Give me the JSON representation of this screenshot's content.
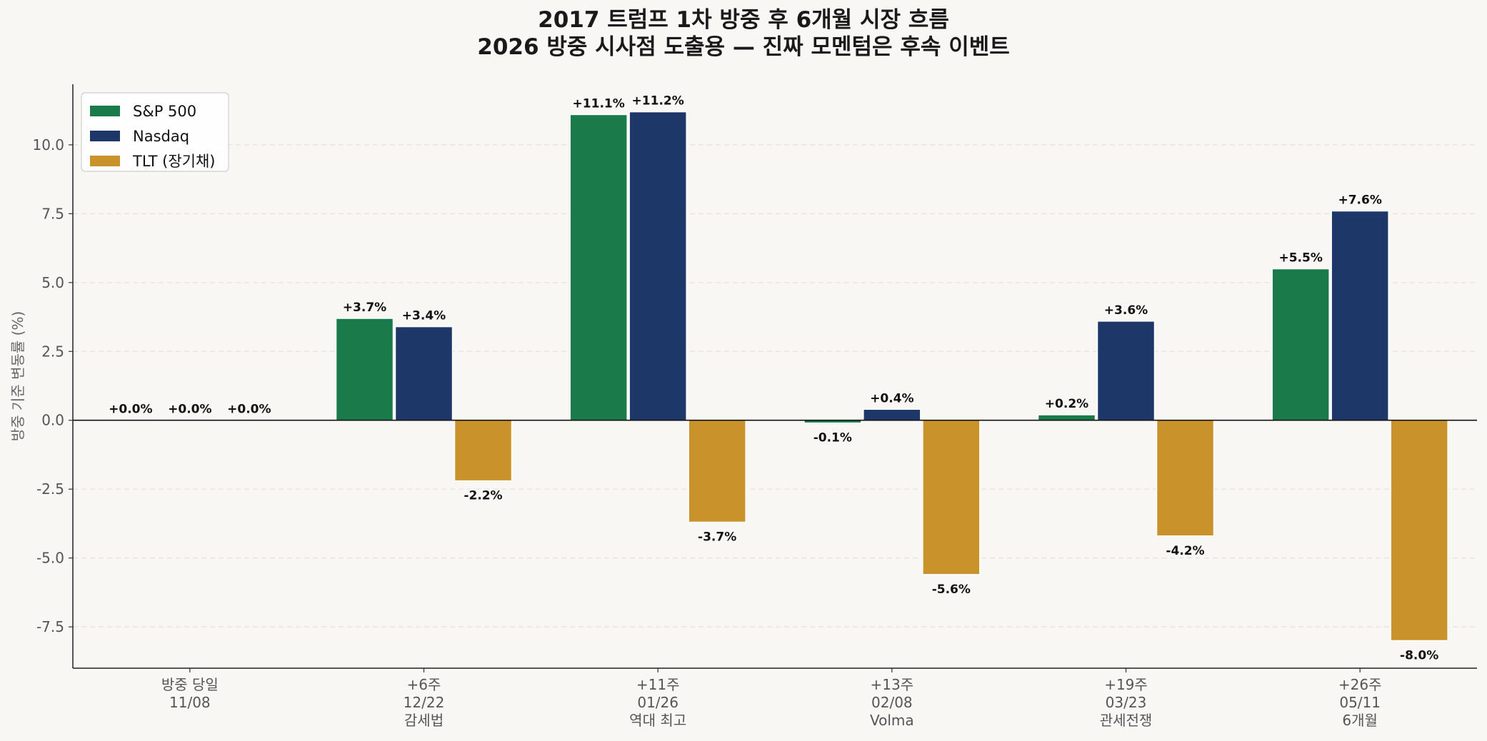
{
  "chart_data": {
    "type": "bar",
    "title_lines": [
      "2017 트럼프 1차 방중 후 6개월 시장 흐름",
      "2026 방중 시사점 도출용 — 진짜 모멘텀은 후속 이벤트"
    ],
    "ylabel": "방중 기준 변동률 (%)",
    "xlabel": "",
    "ylim": [
      -9.0,
      12.2
    ],
    "yticks": [
      -7.5,
      -5.0,
      -2.5,
      0.0,
      2.5,
      5.0,
      7.5,
      10.0
    ],
    "ytick_labels": [
      "-7.5",
      "-5.0",
      "-2.5",
      "0.0",
      "2.5",
      "5.0",
      "7.5",
      "10.0"
    ],
    "grid": true,
    "legend_placement": "top-left",
    "categories": [
      [
        "방중 당일",
        "11/08"
      ],
      [
        "+6주",
        "12/22",
        "감세법"
      ],
      [
        "+11주",
        "01/26",
        "역대 최고"
      ],
      [
        "+13주",
        "02/08",
        "Volma"
      ],
      [
        "+19주",
        "03/23",
        "관세전쟁"
      ],
      [
        "+26주",
        "05/11",
        "6개월"
      ]
    ],
    "series": [
      {
        "name": "S&P 500",
        "color": "#1b7a4a",
        "values": [
          0.0,
          3.7,
          11.1,
          -0.1,
          0.2,
          5.5
        ],
        "labels": [
          "+0.0%",
          "+3.7%",
          "+11.1%",
          "-0.1%",
          "+0.2%",
          "+5.5%"
        ]
      },
      {
        "name": "Nasdaq",
        "color": "#1c3768",
        "values": [
          0.0,
          3.4,
          11.2,
          0.4,
          3.6,
          7.6
        ],
        "labels": [
          "+0.0%",
          "+3.4%",
          "+11.2%",
          "+0.4%",
          "+3.6%",
          "+7.6%"
        ]
      },
      {
        "name": "TLT (장기채)",
        "color": "#c9922a",
        "values": [
          0.0,
          -2.2,
          -3.7,
          -5.6,
          -4.2,
          -8.0
        ],
        "labels": [
          "+0.0%",
          "-2.2%",
          "-3.7%",
          "-5.6%",
          "-4.2%",
          "-8.0%"
        ]
      }
    ]
  }
}
